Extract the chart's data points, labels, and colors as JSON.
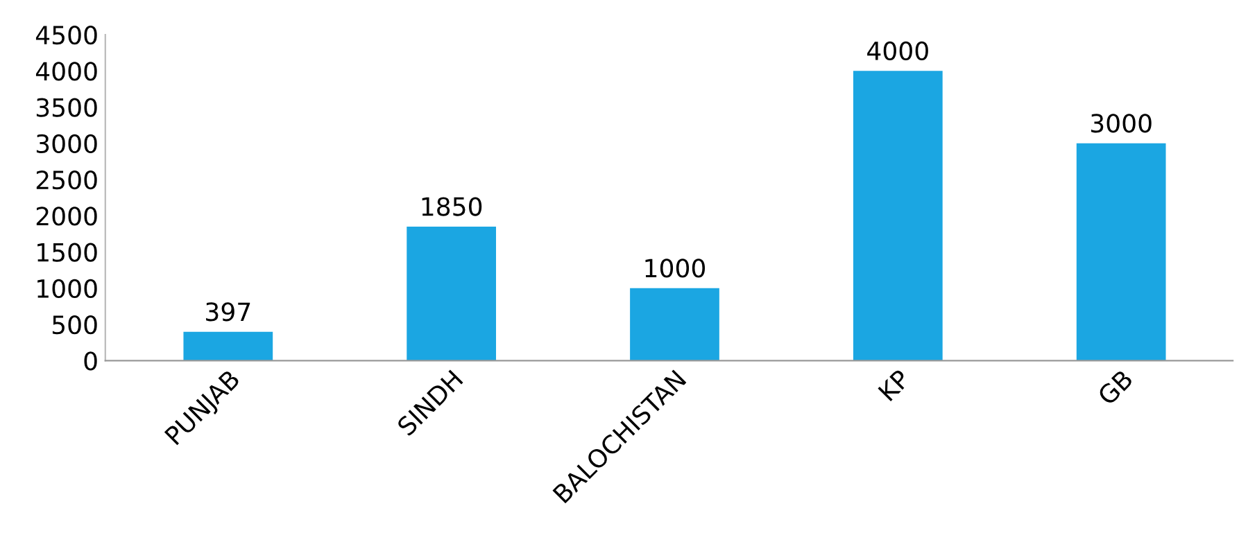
{
  "chart_data": {
    "type": "bar",
    "categories": [
      "PUNJAB",
      "SINDH",
      "BALOCHISTAN",
      "KP",
      "GB"
    ],
    "values": [
      397,
      1850,
      1000,
      4000,
      3000
    ],
    "color": "#1ba6e2",
    "ylim": [
      0,
      4500
    ],
    "yticks": [
      0,
      500,
      1000,
      1500,
      2000,
      2500,
      3000,
      3500,
      4000,
      4500
    ],
    "data_labels": true,
    "grid": false,
    "legend": false
  }
}
